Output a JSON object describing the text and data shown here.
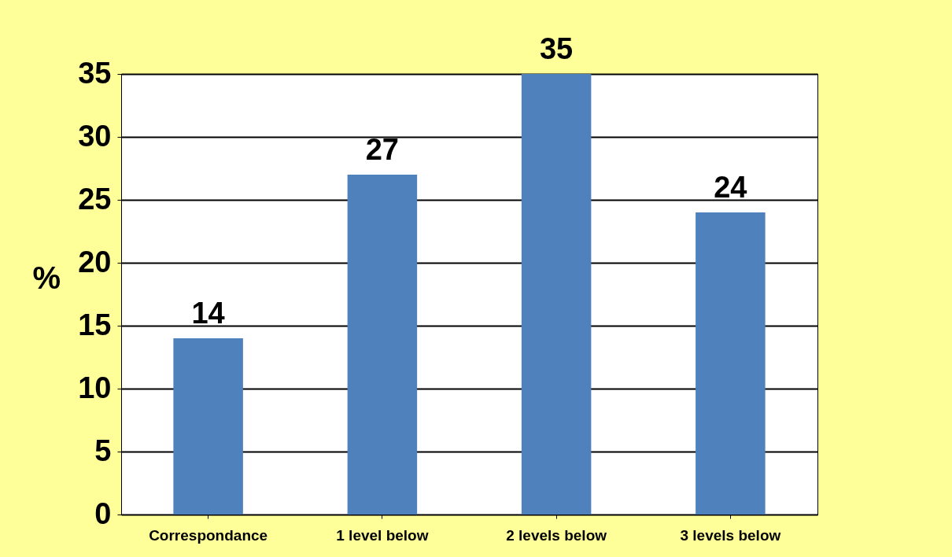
{
  "chart_data": {
    "type": "bar",
    "ylabel": "%",
    "categories": [
      "Correspondance",
      "1 level below",
      "2 levels below",
      "3 levels below"
    ],
    "values": [
      14,
      27,
      35,
      24
    ],
    "color": "#4f81bd",
    "ylim": [
      0,
      35
    ],
    "yticks": [
      0,
      5,
      10,
      15,
      20,
      25,
      30,
      35
    ],
    "grid": "y",
    "data_labels": true
  }
}
